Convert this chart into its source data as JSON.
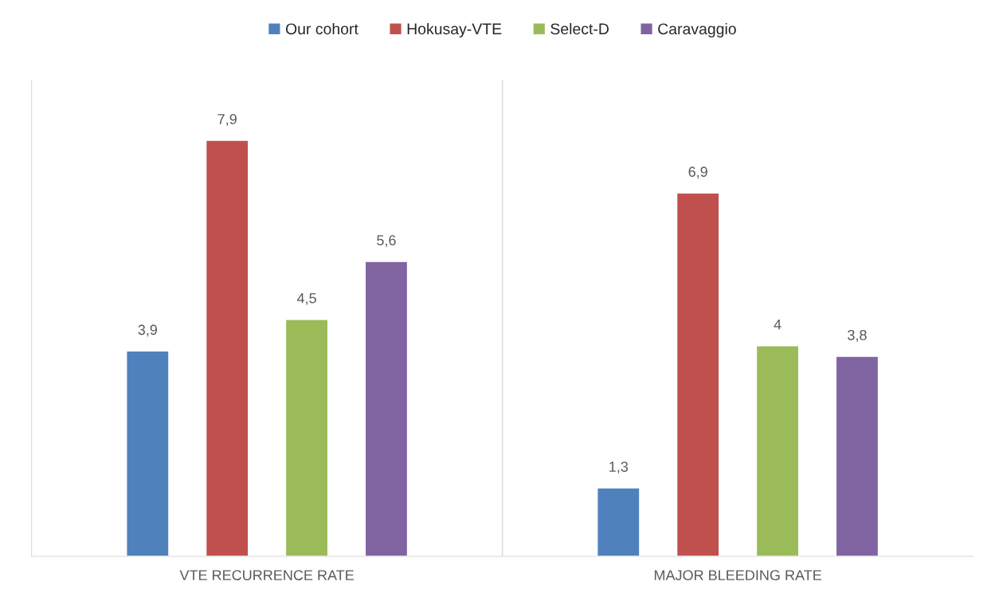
{
  "chart_data": {
    "type": "bar",
    "categories": [
      "VTE RECURRENCE RATE",
      "MAJOR BLEEDING RATE"
    ],
    "series": [
      {
        "name": "Our cohort",
        "color": "#4f81bd",
        "values": [
          3.9,
          1.3
        ],
        "value_labels": [
          "3,9",
          "1,3"
        ]
      },
      {
        "name": "Hokusay-VTE",
        "color": "#c0504d",
        "values": [
          7.9,
          6.9
        ],
        "value_labels": [
          "7,9",
          "6,9"
        ]
      },
      {
        "name": "Select-D",
        "color": "#9bbb59",
        "values": [
          4.5,
          4
        ],
        "value_labels": [
          "4,5",
          "4"
        ]
      },
      {
        "name": "Caravaggio",
        "color": "#8064a2",
        "values": [
          5.6,
          3.8
        ],
        "value_labels": [
          "5,6",
          "3,8"
        ]
      }
    ],
    "legend": "top",
    "grid": false
  }
}
